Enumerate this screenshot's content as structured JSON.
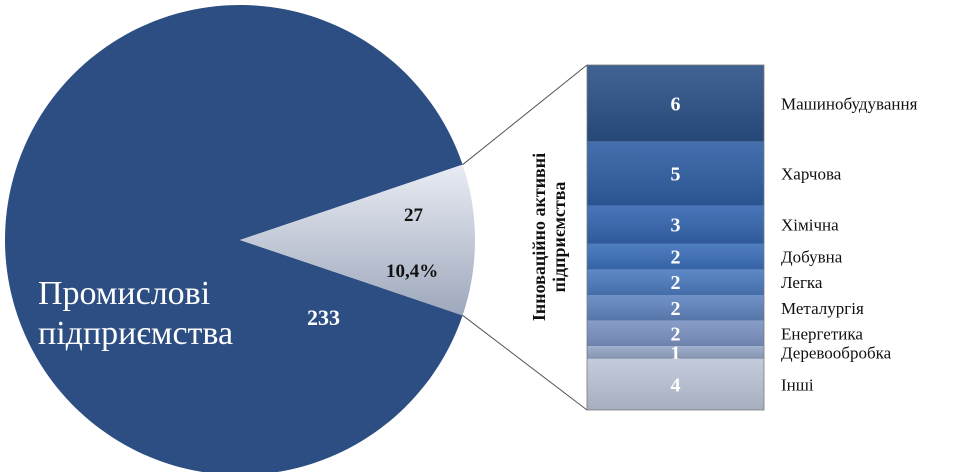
{
  "chart_data": {
    "type": "pie",
    "main": {
      "label_line1": "Промислові",
      "label_line2": "підприємства",
      "value": 233,
      "value_label": "233",
      "color": "#2c4e82"
    },
    "highlight": {
      "value": 27,
      "value_label": "27",
      "percent_label": "10,4%",
      "color_light": "#e9ecf3",
      "color_dark": "#9ea8bc"
    },
    "breakdown": {
      "axis_label_line1": "Інноваційно активні",
      "axis_label_line2": "підприємства",
      "segments": [
        {
          "category": "Машинобудування",
          "value": 6,
          "value_label": "6",
          "color": "#2a5188"
        },
        {
          "category": "Харчова",
          "value": 5,
          "value_label": "5",
          "color": "#2f5fa3"
        },
        {
          "category": "Хімічна",
          "value": 3,
          "value_label": "3",
          "color": "#3466b0"
        },
        {
          "category": "Добувна",
          "value": 2,
          "value_label": "2",
          "color": "#3b6fba"
        },
        {
          "category": "Легка",
          "value": 2,
          "value_label": "2",
          "color": "#4c7cbf"
        },
        {
          "category": "Металургія",
          "value": 2,
          "value_label": "2",
          "color": "#6185c0"
        },
        {
          "category": "Енергетика",
          "value": 2,
          "value_label": "2",
          "color": "#7b93c2"
        },
        {
          "category": "Деревообробка",
          "value": 1,
          "value_label": "1",
          "color": "#95a6c6"
        },
        {
          "category": "Інші",
          "value": 4,
          "value_label": "4",
          "color": "#bcc5d8"
        }
      ]
    }
  }
}
